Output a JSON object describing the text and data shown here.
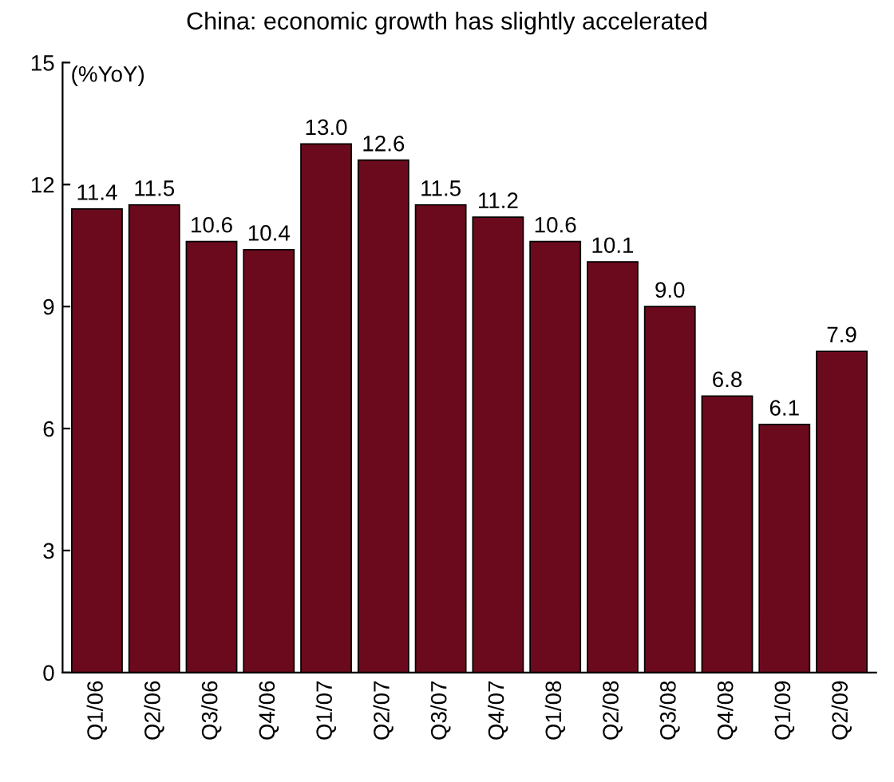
{
  "chart_data": {
    "type": "bar",
    "title": "China: economic growth has slightly accelerated",
    "ylabel": "(%YoY)",
    "categories": [
      "Q1/06",
      "Q2/06",
      "Q3/06",
      "Q4/06",
      "Q1/07",
      "Q2/07",
      "Q3/07",
      "Q4/07",
      "Q1/08",
      "Q2/08",
      "Q3/08",
      "Q4/08",
      "Q1/09",
      "Q2/09"
    ],
    "values": [
      11.4,
      11.5,
      10.6,
      10.4,
      13.0,
      12.6,
      11.5,
      11.2,
      10.6,
      10.1,
      9.0,
      6.8,
      6.1,
      7.9
    ],
    "value_labels": [
      "11.4",
      "11.5",
      "10.6",
      "10.4",
      "13.0",
      "12.6",
      "11.5",
      "11.2",
      "10.6",
      "10.1",
      "9.0",
      "6.8",
      "6.1",
      "7.9"
    ],
    "color": "#6b0a1c",
    "ylim": [
      0,
      15
    ],
    "yticks": [
      0,
      3,
      6,
      9,
      12,
      15
    ],
    "grid": false
  }
}
